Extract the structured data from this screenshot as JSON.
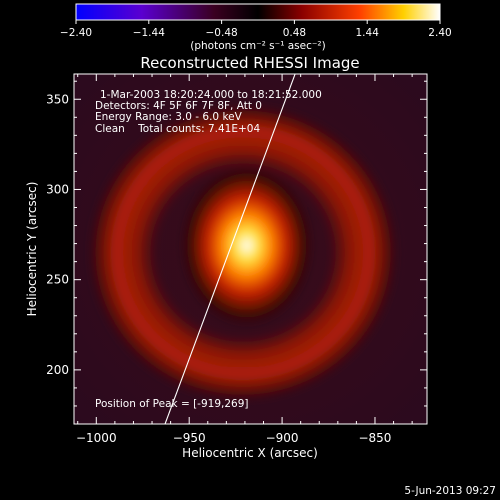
{
  "chart_data": {
    "type": "heatmap",
    "title": "Reconstructed RHESSI Image",
    "xlabel": "Heliocentric X (arcsec)",
    "ylabel": "Heliocentric Y (arcsec)",
    "xlim": [
      -1012,
      -822
    ],
    "ylim": [
      170,
      364
    ],
    "xticks": [
      -1000,
      -950,
      -900,
      -850
    ],
    "yticks": [
      200,
      250,
      300,
      350
    ],
    "xtick_labels": [
      "−1000",
      "−950",
      "−900",
      "−850"
    ],
    "ytick_labels": [
      "200",
      "250",
      "300",
      "350"
    ],
    "colorbar": {
      "range": [
        -2.4,
        2.4
      ],
      "ticks": [
        -2.4,
        -1.44,
        -0.48,
        0.48,
        1.44,
        2.4
      ],
      "tick_labels": [
        "−2.40",
        "−1.44",
        "−0.48",
        "0.48",
        "1.44",
        "2.40"
      ],
      "unit_label": "(photons cm⁻² s⁻¹ asec⁻²)",
      "colormap": "blue-to-white diverging (blue, purple, black, red, orange, yellow, white)"
    },
    "annotations": [
      "1-Mar-2003 18:20:24.000 to 18:21:52.000",
      "Detectors: 4F 5F 6F 7F 8F, Att 0",
      "Energy Range: 3.0 - 6.0 keV",
      "Clean    Total counts: 7.41E+04"
    ],
    "peak_label": "Position of Peak = [-919,269]",
    "source": {
      "peak": [
        -919,
        269
      ],
      "peak_value": 2.4,
      "ring_center": [
        -921,
        265
      ],
      "ring_radius_arcsec": 62
    },
    "limb_line": [
      [
        -963,
        170
      ],
      [
        -893,
        364
      ]
    ]
  },
  "footer": {
    "date": "5-Jun-2013 09:27"
  },
  "colors": {
    "background": "#000000",
    "text": "#ffffff",
    "limb": "#ffffff"
  }
}
